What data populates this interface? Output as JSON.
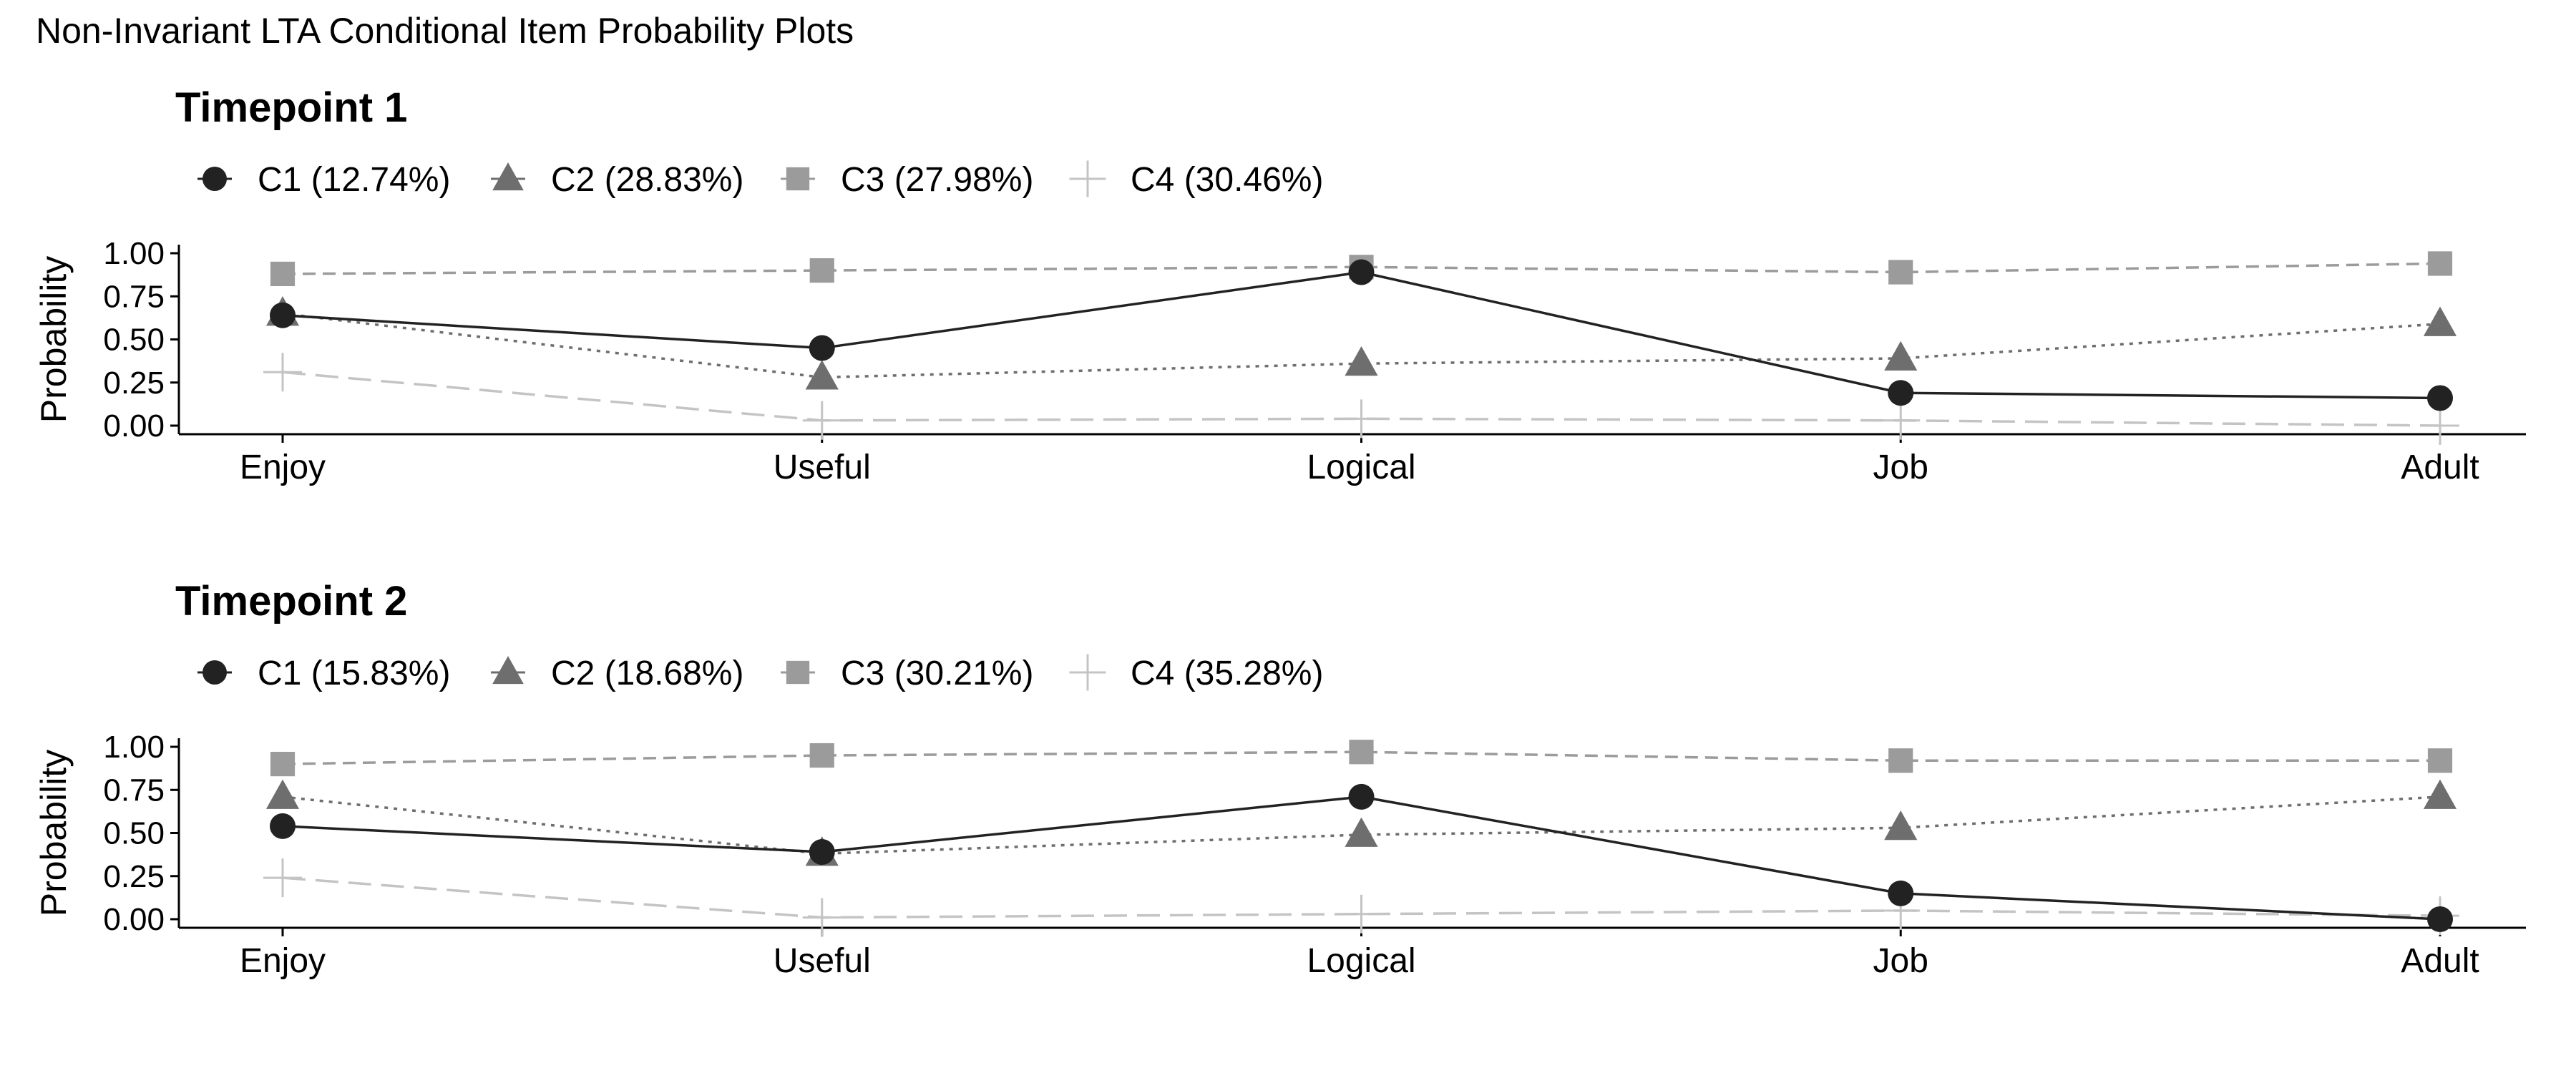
{
  "suptitle": "Non-Invariant LTA Conditional Item Probability Plots",
  "series_styles": [
    {
      "color": "#222222",
      "marker": "circle",
      "dash": "solid"
    },
    {
      "color": "#6e6e6e",
      "marker": "triangle",
      "dash": "dotted"
    },
    {
      "color": "#9b9b9b",
      "marker": "square",
      "dash": "dashed"
    },
    {
      "color": "#c4c4c4",
      "marker": "plus",
      "dash": "longdash"
    }
  ],
  "chart_data": [
    {
      "type": "line",
      "title": "Timepoint 1",
      "xlabel": "",
      "ylabel": "Probability",
      "categories": [
        "Enjoy",
        "Useful",
        "Logical",
        "Job",
        "Adult"
      ],
      "ylim": [
        0,
        1
      ],
      "yticks": [
        "0.00",
        "0.25",
        "0.50",
        "0.75",
        "1.00"
      ],
      "grid": false,
      "legend_position": "top-left",
      "series": [
        {
          "name": "C1 (12.74%)",
          "values": [
            0.64,
            0.45,
            0.89,
            0.19,
            0.16
          ]
        },
        {
          "name": "C2 (28.83%)",
          "values": [
            0.65,
            0.28,
            0.36,
            0.39,
            0.59
          ]
        },
        {
          "name": "C3 (27.98%)",
          "values": [
            0.88,
            0.9,
            0.92,
            0.89,
            0.94
          ]
        },
        {
          "name": "C4 (30.46%)",
          "values": [
            0.31,
            0.03,
            0.04,
            0.03,
            0.0
          ]
        }
      ]
    },
    {
      "type": "line",
      "title": "Timepoint 2",
      "xlabel": "",
      "ylabel": "Probability",
      "categories": [
        "Enjoy",
        "Useful",
        "Logical",
        "Job",
        "Adult"
      ],
      "ylim": [
        0,
        1
      ],
      "yticks": [
        "0.00",
        "0.25",
        "0.50",
        "0.75",
        "1.00"
      ],
      "grid": false,
      "legend_position": "top-left",
      "series": [
        {
          "name": "C1 (15.83%)",
          "values": [
            0.54,
            0.39,
            0.71,
            0.15,
            0.0
          ]
        },
        {
          "name": "C2 (18.68%)",
          "values": [
            0.71,
            0.38,
            0.49,
            0.53,
            0.71
          ]
        },
        {
          "name": "C3 (30.21%)",
          "values": [
            0.9,
            0.95,
            0.97,
            0.92,
            0.92
          ]
        },
        {
          "name": "C4 (35.28%)",
          "values": [
            0.24,
            0.01,
            0.03,
            0.05,
            0.02
          ]
        }
      ]
    }
  ]
}
